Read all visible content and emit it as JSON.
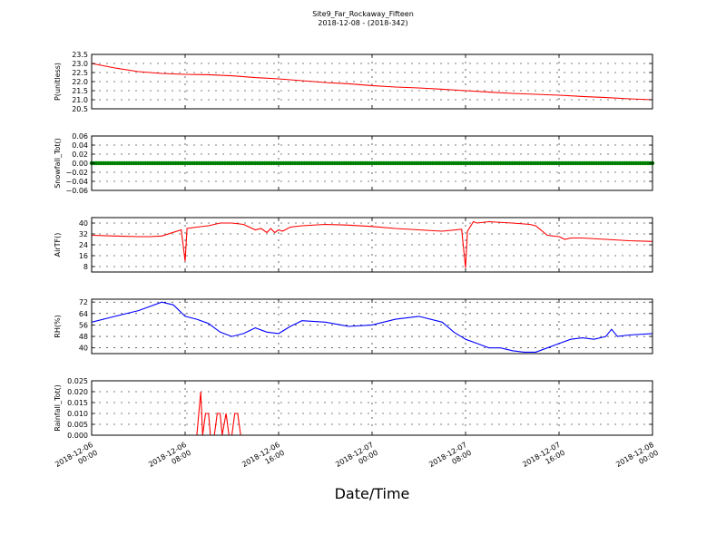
{
  "figure": {
    "title": "Site9_Far_Rockaway_Fifteen",
    "subtitle": "2018-12-08 - (2018-342)",
    "xlabel": "Date/Time"
  },
  "colors": {
    "pressure": "#ff0000",
    "snowfall": "#008000",
    "airtemp": "#ff0000",
    "rh": "#0000ff",
    "rainfall": "#ff0000",
    "axis": "#000000"
  },
  "chart_data": [
    {
      "type": "line",
      "ylabel": "P(unitless)",
      "ylim": [
        20.5,
        23.5
      ],
      "yticks": [
        "20.5",
        "21.0",
        "21.5",
        "22.0",
        "22.5",
        "23.0",
        "23.5"
      ],
      "grid": true,
      "x": [
        "2018-12-06 00:00",
        "2018-12-06 02:00",
        "2018-12-06 04:00",
        "2018-12-06 06:00",
        "2018-12-06 08:00",
        "2018-12-06 10:00",
        "2018-12-06 12:00",
        "2018-12-06 14:00",
        "2018-12-06 16:00",
        "2018-12-06 18:00",
        "2018-12-06 20:00",
        "2018-12-06 22:00",
        "2018-12-07 00:00",
        "2018-12-07 02:00",
        "2018-12-07 04:00",
        "2018-12-07 06:00",
        "2018-12-07 08:00",
        "2018-12-07 10:00",
        "2018-12-07 12:00",
        "2018-12-07 14:00",
        "2018-12-07 16:00",
        "2018-12-07 18:00",
        "2018-12-07 20:00",
        "2018-12-07 22:00",
        "2018-12-08 00:00"
      ],
      "values": [
        23.0,
        22.75,
        22.55,
        22.45,
        22.4,
        22.38,
        22.32,
        22.22,
        22.15,
        22.05,
        21.95,
        21.88,
        21.78,
        21.7,
        21.65,
        21.58,
        21.5,
        21.42,
        21.35,
        21.3,
        21.25,
        21.18,
        21.12,
        21.05,
        21.0
      ]
    },
    {
      "type": "scatter",
      "ylabel": "Snowfall_Tot()",
      "ylim": [
        -0.06,
        0.06
      ],
      "yticks": [
        "−0.06",
        "−0.04",
        "−0.02",
        "0.00",
        "0.02",
        "0.04",
        "0.06"
      ],
      "grid": true,
      "x_range": [
        "2018-12-06 00:00",
        "2018-12-08 00:00"
      ],
      "constant_value": 0.0
    },
    {
      "type": "line",
      "ylabel": "AirTF()",
      "ylim": [
        4,
        44
      ],
      "yticks": [
        "8",
        "16",
        "24",
        "32",
        "40"
      ],
      "grid": true,
      "x": [
        "2018-12-06 00:00",
        "2018-12-06 02:00",
        "2018-12-06 04:00",
        "2018-12-06 05:00",
        "2018-12-06 06:00",
        "2018-12-06 07:40",
        "2018-12-06 08:00",
        "2018-12-06 08:10",
        "2018-12-06 09:00",
        "2018-12-06 10:00",
        "2018-12-06 11:00",
        "2018-12-06 12:00",
        "2018-12-06 13:00",
        "2018-12-06 14:00",
        "2018-12-06 14:30",
        "2018-12-06 15:00",
        "2018-12-06 15:20",
        "2018-12-06 15:40",
        "2018-12-06 16:00",
        "2018-12-06 16:20",
        "2018-12-06 17:00",
        "2018-12-06 18:00",
        "2018-12-06 20:00",
        "2018-12-06 22:00",
        "2018-12-07 00:00",
        "2018-12-07 02:00",
        "2018-12-07 04:00",
        "2018-12-07 06:00",
        "2018-12-07 07:40",
        "2018-12-07 08:00",
        "2018-12-07 08:10",
        "2018-12-07 08:40",
        "2018-12-07 09:00",
        "2018-12-07 10:00",
        "2018-12-07 12:00",
        "2018-12-07 13:30",
        "2018-12-07 14:00",
        "2018-12-07 15:00",
        "2018-12-07 16:00",
        "2018-12-07 16:30",
        "2018-12-07 17:00",
        "2018-12-07 18:00",
        "2018-12-07 20:00",
        "2018-12-07 22:00",
        "2018-12-08 00:00"
      ],
      "values": [
        31,
        30.5,
        30,
        30,
        30.5,
        35,
        12,
        36,
        37,
        38,
        40,
        40,
        39,
        35,
        36,
        33,
        36,
        33,
        35,
        34,
        37,
        38,
        39,
        38.5,
        37.5,
        36,
        35,
        34,
        35.5,
        7,
        34,
        41,
        40,
        41,
        40,
        39,
        38,
        31,
        30,
        28,
        29,
        29,
        28,
        27,
        26.5
      ]
    },
    {
      "type": "line",
      "ylabel": "RH(%)",
      "ylim": [
        36,
        74
      ],
      "yticks": [
        "40",
        "48",
        "56",
        "64",
        "72"
      ],
      "grid": true,
      "x": [
        "2018-12-06 00:00",
        "2018-12-06 02:00",
        "2018-12-06 04:00",
        "2018-12-06 06:00",
        "2018-12-06 07:00",
        "2018-12-06 08:00",
        "2018-12-06 09:00",
        "2018-12-06 10:00",
        "2018-12-06 11:00",
        "2018-12-06 12:00",
        "2018-12-06 13:00",
        "2018-12-06 14:00",
        "2018-12-06 15:00",
        "2018-12-06 16:00",
        "2018-12-06 17:00",
        "2018-12-06 18:00",
        "2018-12-06 20:00",
        "2018-12-06 22:00",
        "2018-12-07 00:00",
        "2018-12-07 02:00",
        "2018-12-07 04:00",
        "2018-12-07 06:00",
        "2018-12-07 07:00",
        "2018-12-07 08:00",
        "2018-12-07 09:00",
        "2018-12-07 10:00",
        "2018-12-07 11:00",
        "2018-12-07 12:00",
        "2018-12-07 13:00",
        "2018-12-07 14:00",
        "2018-12-07 15:00",
        "2018-12-07 16:00",
        "2018-12-07 17:00",
        "2018-12-07 18:00",
        "2018-12-07 19:00",
        "2018-12-07 20:00",
        "2018-12-07 20:30",
        "2018-12-07 21:00",
        "2018-12-07 22:00",
        "2018-12-08 00:00"
      ],
      "values": [
        58,
        62,
        66,
        72,
        70,
        62,
        60,
        57,
        51,
        48,
        50,
        54,
        51,
        50,
        55,
        59,
        58,
        55,
        56,
        60,
        62,
        58,
        51,
        46,
        43,
        40,
        40,
        38,
        37,
        37,
        40,
        43,
        46,
        47,
        46,
        48,
        53,
        48,
        49,
        50
      ]
    },
    {
      "type": "line",
      "ylabel": "Rainfall_Tot()",
      "ylim": [
        0.0,
        0.025
      ],
      "yticks": [
        "0.000",
        "0.005",
        "0.010",
        "0.015",
        "0.020",
        "0.025"
      ],
      "grid": true,
      "x": [
        "2018-12-06 00:00",
        "2018-12-06 09:00",
        "2018-12-06 09:20",
        "2018-12-06 09:30",
        "2018-12-06 09:45",
        "2018-12-06 10:00",
        "2018-12-06 10:10",
        "2018-12-06 10:30",
        "2018-12-06 10:45",
        "2018-12-06 11:00",
        "2018-12-06 11:10",
        "2018-12-06 11:30",
        "2018-12-06 11:45",
        "2018-12-06 12:00",
        "2018-12-06 12:15",
        "2018-12-06 12:30",
        "2018-12-06 12:45",
        "2018-12-06 13:00",
        "2018-12-08 00:00"
      ],
      "values": [
        0,
        0,
        0.02,
        0,
        0.01,
        0.01,
        0,
        0,
        0.01,
        0.01,
        0,
        0.01,
        0,
        0,
        0.01,
        0.01,
        0,
        0,
        0
      ]
    }
  ],
  "x_axis": {
    "start": "2018-12-06 00:00",
    "end": "2018-12-08 00:00",
    "tick_labels": [
      [
        "2018-12-06",
        "00:00"
      ],
      [
        "2018-12-06",
        "08:00"
      ],
      [
        "2018-12-06",
        "16:00"
      ],
      [
        "2018-12-07",
        "00:00"
      ],
      [
        "2018-12-07",
        "08:00"
      ],
      [
        "2018-12-07",
        "16:00"
      ],
      [
        "2018-12-08",
        "00:00"
      ]
    ]
  }
}
